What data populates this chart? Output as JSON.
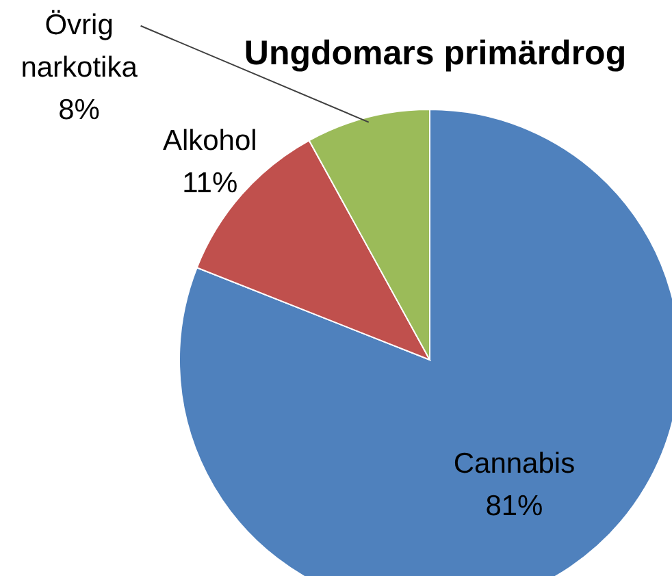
{
  "chart_data": {
    "type": "pie",
    "title": "Ungdomars primärdrog",
    "categories": [
      "Cannabis",
      "Alkohol",
      "Övrig narkotika"
    ],
    "values": [
      81,
      11,
      8
    ],
    "colors": [
      "#4f81bd",
      "#c0504d",
      "#9bbb59"
    ],
    "value_labels": [
      "81%",
      "11%",
      "8%"
    ]
  }
}
